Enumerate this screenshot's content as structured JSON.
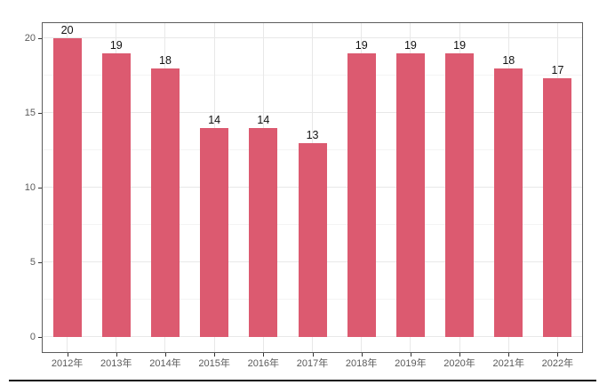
{
  "chart_data": {
    "type": "bar",
    "title": "",
    "xlabel": "",
    "ylabel": "",
    "categories": [
      "2012年",
      "2013年",
      "2014年",
      "2015年",
      "2016年",
      "2017年",
      "2018年",
      "2019年",
      "2020年",
      "2021年",
      "2022年"
    ],
    "values": [
      20,
      19,
      18,
      14,
      14,
      13,
      19,
      19,
      19,
      18,
      17
    ],
    "bar_labels": [
      "20",
      "19",
      "18",
      "14",
      "14",
      "13",
      "19",
      "19",
      "19",
      "18",
      "17"
    ],
    "bar_heights_rendered": [
      20,
      19,
      18,
      14,
      14,
      13,
      19,
      19,
      19,
      18,
      17.3
    ],
    "ylim": [
      0,
      21
    ],
    "y_major_ticks": [
      0,
      5,
      10,
      15,
      20
    ],
    "y_tick_labels": [
      "0",
      "5",
      "10",
      "15",
      "20"
    ],
    "y_minor_ticks": [
      2.5,
      7.5,
      12.5,
      17.5
    ],
    "grid": "on",
    "grid_vertical": "at-category-centers",
    "legend": "none",
    "colors": {
      "bar_fill": "#DC5A70",
      "value_label": "#111111",
      "axis_text": "#5a5a5a",
      "tick_mark": "#333333",
      "panel_border": "#5c5c5c",
      "grid_major": "#e8e8e8",
      "grid_minor": "#f4f4f4",
      "background": "#ffffff",
      "document_rule": "#101010"
    }
  }
}
